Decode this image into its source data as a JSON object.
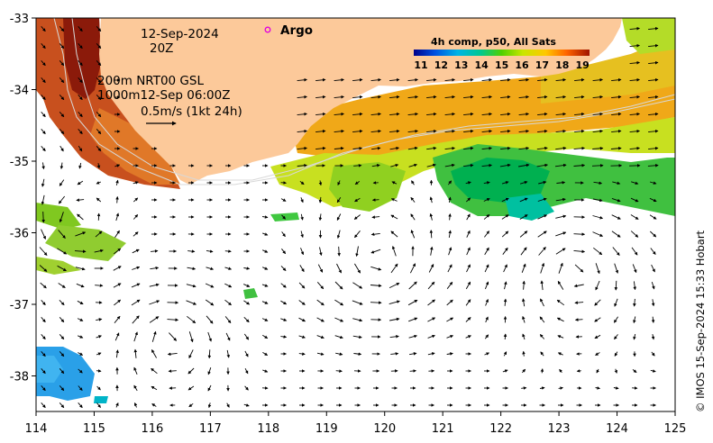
{
  "map": {
    "date": "12-Sep-2024",
    "hour": "20Z",
    "current_depth_note": "200m  NRT00 GSL",
    "current_depth_note2": "1000m12-Sep 06:00Z",
    "vector_scale": "0.5m/s (1kt 24h)",
    "argo_label": "Argo",
    "colorbar_title": "4h comp, p50, All Sats",
    "colorbar_ticks": [
      "11",
      "12",
      "13",
      "14",
      "15",
      "16",
      "17",
      "18",
      "19"
    ],
    "credit": "© IMOS 15-Sep-2024 15:33 Hobart",
    "x_ticks": [
      "114",
      "115",
      "116",
      "117",
      "118",
      "119",
      "120",
      "121",
      "122",
      "123",
      "124",
      "125"
    ],
    "y_ticks": [
      "-33",
      "-34",
      "-35",
      "-36",
      "-37",
      "-38"
    ],
    "colors": {
      "land": "#fcc99a",
      "arrow": "#000000",
      "argo_marker": "#e000e0"
    }
  }
}
